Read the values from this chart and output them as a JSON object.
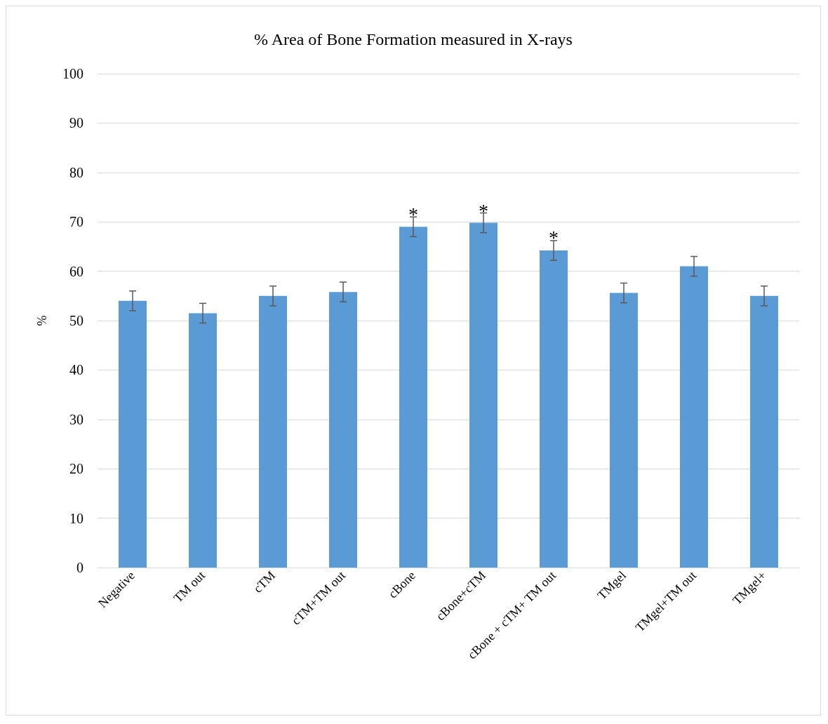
{
  "chart_data": {
    "type": "bar",
    "title": "% Area of Bone Formation measured in X-rays",
    "ylabel": "%",
    "categories": [
      "Negative",
      "TM out",
      "cTM",
      "cTM+TM out",
      "cBone",
      "cBone+cTM",
      "cBone + cTM+ TM out",
      "TMgel",
      "TMgel+TM out",
      "TMgel+"
    ],
    "values": [
      54,
      51.5,
      55,
      55.8,
      69,
      69.8,
      64.2,
      55.6,
      61,
      55
    ],
    "errors": [
      2,
      2,
      2,
      2,
      2,
      2,
      2,
      2,
      2,
      2
    ],
    "color": "#5b9bd5",
    "ylim": [
      0,
      100
    ],
    "yticks": [
      0,
      10,
      20,
      30,
      40,
      50,
      60,
      70,
      80,
      90,
      100
    ],
    "grid": "y",
    "annotations": [
      {
        "text": "*",
        "x": "cBone",
        "y": 71.5
      },
      {
        "text": "*",
        "x": "cBone+cTM",
        "y": 72.3
      },
      {
        "text": "*",
        "x": "cBone + cTM+ TM out",
        "y": 66.8
      }
    ]
  }
}
